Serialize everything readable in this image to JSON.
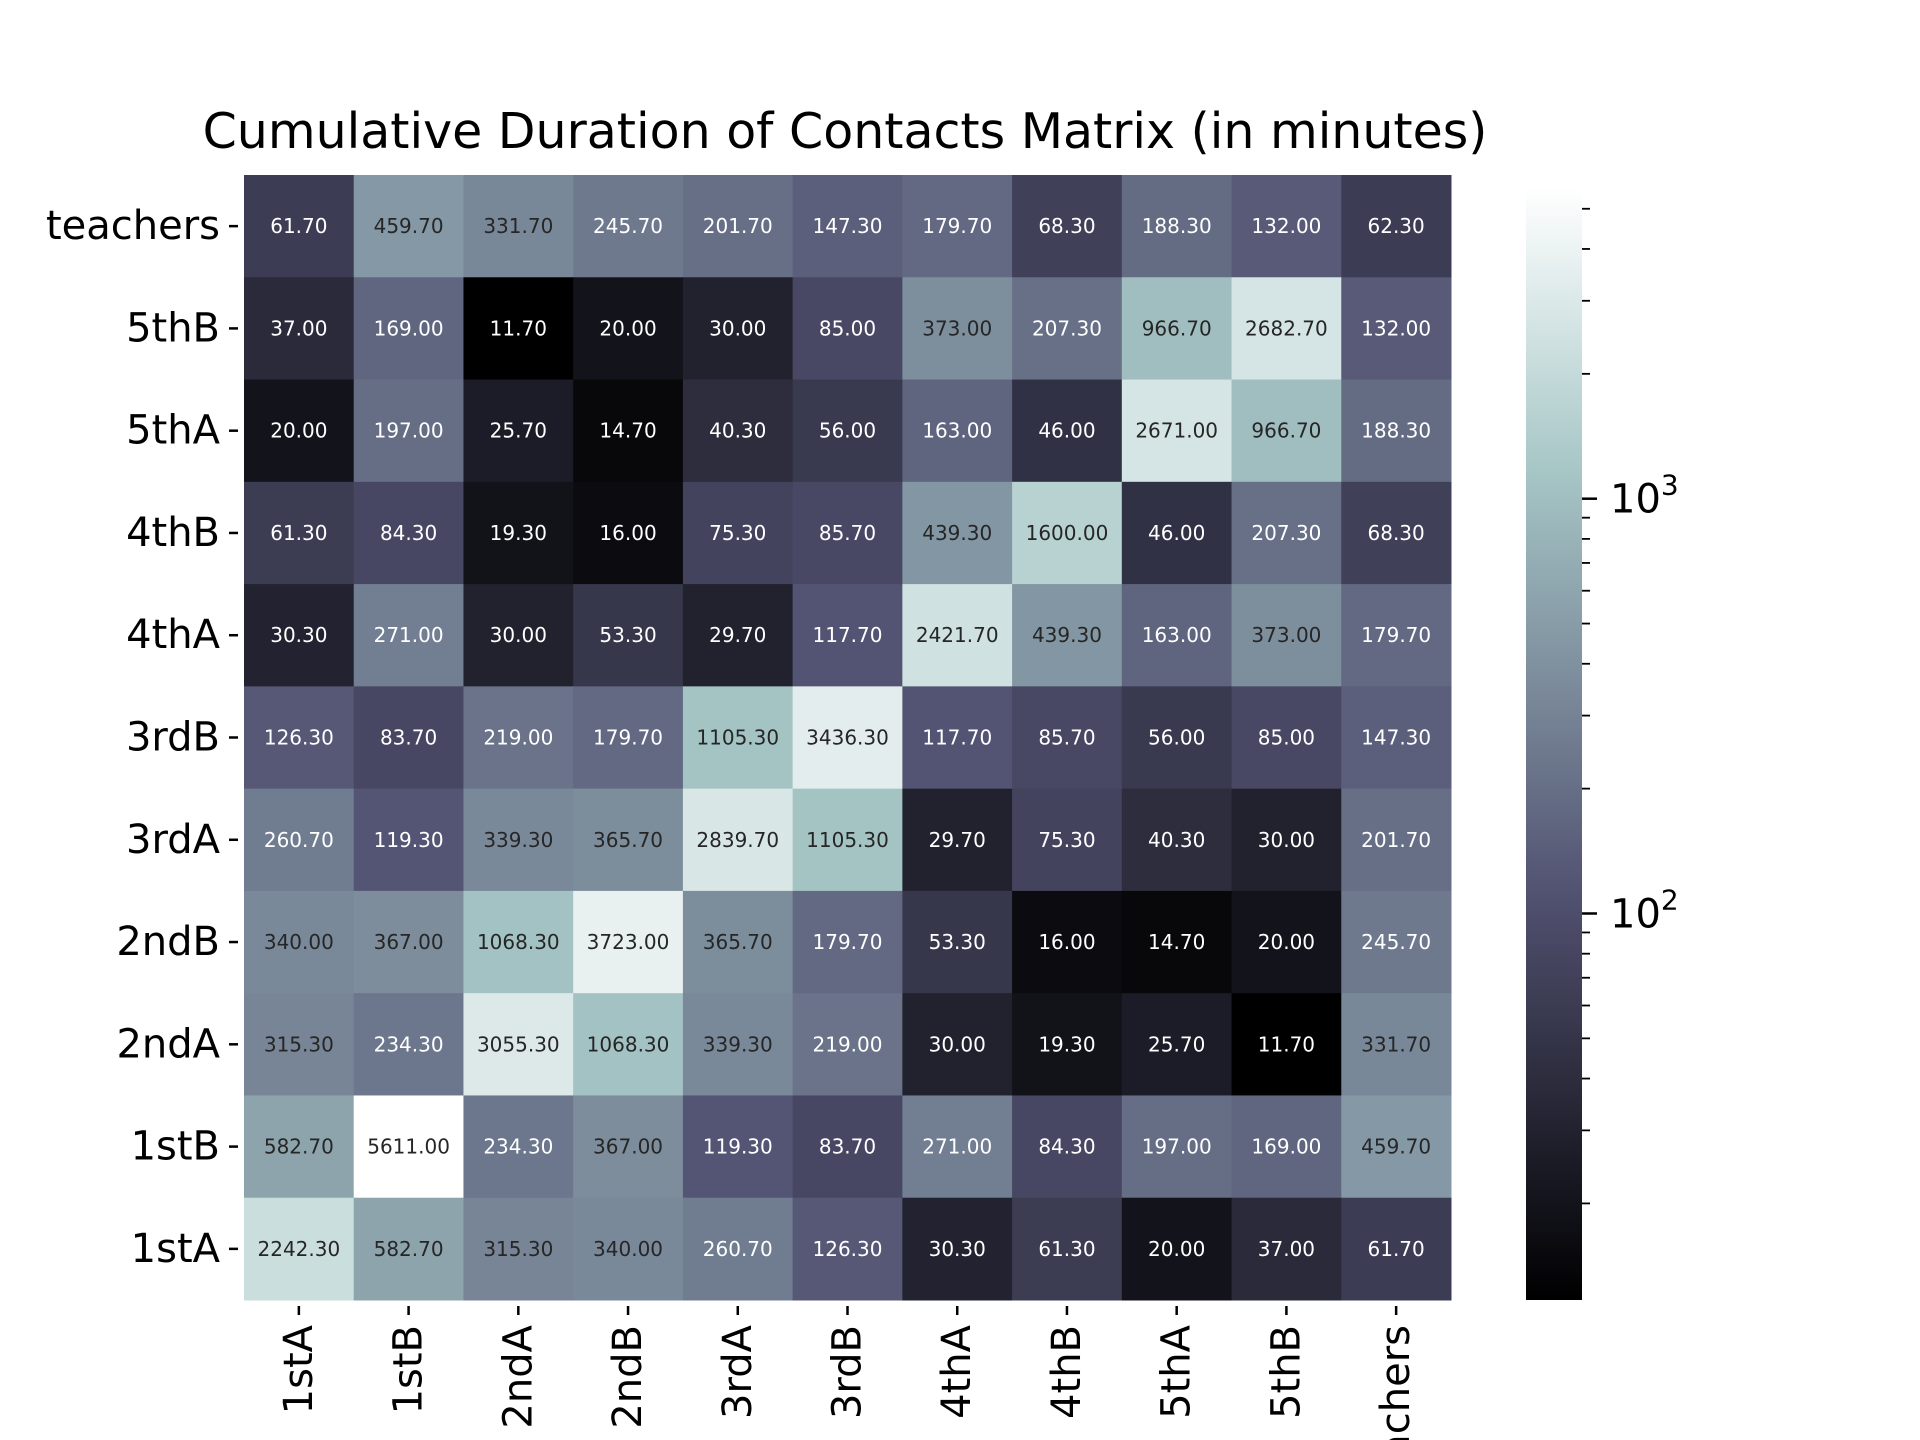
{
  "chart_data": {
    "type": "heatmap",
    "title": "Cumulative Duration of Contacts Matrix (in minutes)",
    "xlabel": "",
    "ylabel": "",
    "x_categories": [
      "1stA",
      "1stB",
      "2ndA",
      "2ndB",
      "3rdA",
      "3rdB",
      "4thA",
      "4thB",
      "5thA",
      "5thB",
      "teachers"
    ],
    "y_categories": [
      "teachers",
      "5thB",
      "5thA",
      "4thB",
      "4thA",
      "3rdB",
      "3rdA",
      "2ndB",
      "2ndA",
      "1stB",
      "1stA"
    ],
    "values": [
      [
        61.7,
        459.7,
        331.7,
        245.7,
        201.7,
        147.3,
        179.7,
        68.3,
        188.3,
        132.0,
        62.3
      ],
      [
        37.0,
        169.0,
        11.7,
        20.0,
        30.0,
        85.0,
        373.0,
        207.3,
        966.7,
        2682.7,
        132.0
      ],
      [
        20.0,
        197.0,
        25.7,
        14.7,
        40.3,
        56.0,
        163.0,
        46.0,
        2671.0,
        966.7,
        188.3
      ],
      [
        61.3,
        84.3,
        19.3,
        16.0,
        75.3,
        85.7,
        439.3,
        1600.0,
        46.0,
        207.3,
        68.3
      ],
      [
        30.3,
        271.0,
        30.0,
        53.3,
        29.7,
        117.7,
        2421.7,
        439.3,
        163.0,
        373.0,
        179.7
      ],
      [
        126.3,
        83.7,
        219.0,
        179.7,
        1105.3,
        3436.3,
        117.7,
        85.7,
        56.0,
        85.0,
        147.3
      ],
      [
        260.7,
        119.3,
        339.3,
        365.7,
        2839.7,
        1105.3,
        29.7,
        75.3,
        40.3,
        30.0,
        201.7
      ],
      [
        340.0,
        367.0,
        1068.3,
        3723.0,
        365.7,
        179.7,
        53.3,
        16.0,
        14.7,
        20.0,
        245.7
      ],
      [
        315.3,
        234.3,
        3055.3,
        1068.3,
        339.3,
        219.0,
        30.0,
        19.3,
        25.7,
        11.7,
        331.7
      ],
      [
        582.7,
        5611.0,
        234.3,
        367.0,
        119.3,
        83.7,
        271.0,
        84.3,
        197.0,
        169.0,
        459.7
      ],
      [
        2242.3,
        582.7,
        315.3,
        340.0,
        260.7,
        126.3,
        30.3,
        61.3,
        20.0,
        37.0,
        61.7
      ]
    ],
    "value_format": "2 decimals",
    "colormap": "bone",
    "color_scale": "log",
    "colorbar": {
      "vmin": 11.7,
      "vmax": 5611.0,
      "major_ticks": [
        100,
        1000
      ],
      "major_labels": [
        "10",
        "10"
      ],
      "major_label_exponents": [
        "2",
        "3"
      ],
      "minor_ticks": [
        20,
        30,
        40,
        50,
        60,
        70,
        80,
        90,
        200,
        300,
        400,
        500,
        600,
        700,
        800,
        900,
        2000,
        3000,
        4000,
        5000
      ]
    },
    "grid": false,
    "legend": "colorbar-right"
  }
}
